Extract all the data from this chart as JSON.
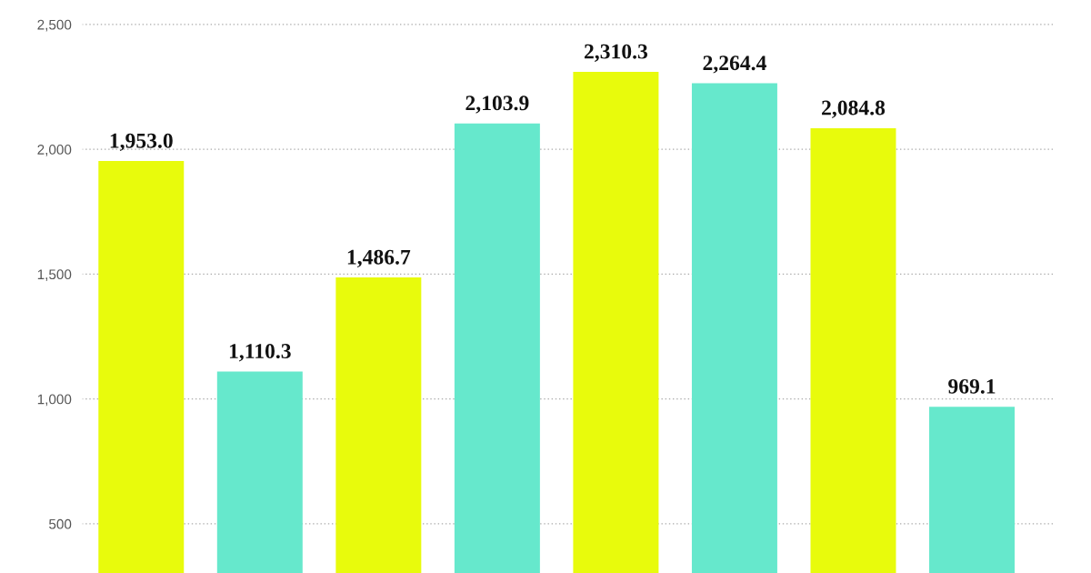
{
  "chart_data": {
    "type": "bar",
    "categories": [
      null,
      null,
      null,
      null,
      null,
      null,
      null,
      null
    ],
    "values": [
      1953.0,
      1110.3,
      1486.7,
      2103.9,
      2310.3,
      2264.4,
      2084.8,
      969.1
    ],
    "colors": [
      "#e8fb0c",
      "#66e8cc",
      "#e8fb0c",
      "#66e8cc",
      "#e8fb0c",
      "#66e8cc",
      "#e8fb0c",
      "#66e8cc"
    ],
    "value_labels": [
      "1,953.0",
      "1,110.3",
      "1,486.7",
      "2,103.9",
      "2,310.3",
      "2,264.4",
      "2,084.8",
      "969.1"
    ],
    "ylim": [
      303,
      2598
    ],
    "yticks": [
      {
        "value": 500,
        "label": "500"
      },
      {
        "value": 1000,
        "label": "1,000"
      },
      {
        "value": 1500,
        "label": "1,500"
      },
      {
        "value": 2000,
        "label": "2,000"
      },
      {
        "value": 2500,
        "label": "2,500"
      }
    ],
    "grid": "y",
    "tick_labels": "y"
  }
}
